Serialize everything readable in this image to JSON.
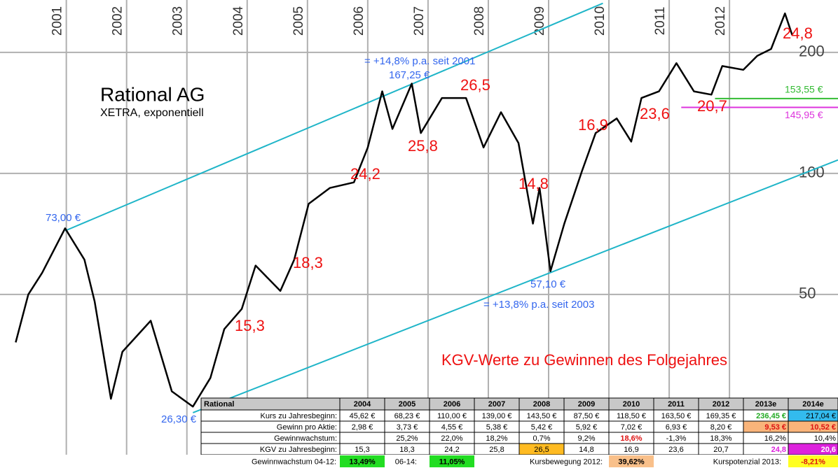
{
  "chart_data": {
    "type": "line",
    "title": "Rational AG",
    "subtitle": "XETRA, exponentiell",
    "note": "KGV-Werte zu Gewinnen des Folgejahres",
    "log_scale": true,
    "grid": true,
    "xlim": [
      1999.9,
      2013.8
    ],
    "xticks": [
      2001,
      2002,
      2003,
      2004,
      2005,
      2006,
      2007,
      2008,
      2009,
      2010,
      2011,
      2012
    ],
    "ylim": [
      18.5,
      270
    ],
    "yticks": [
      50,
      100,
      200
    ],
    "series": [
      {
        "name": "Rational",
        "color": "#000000",
        "x": [
          2000.16,
          2000.37,
          2000.6,
          2000.98,
          2001.3,
          2001.47,
          2001.74,
          2001.93,
          2002.4,
          2002.75,
          2003.1,
          2003.39,
          2003.62,
          2003.91,
          2004.14,
          2004.55,
          2004.78,
          2005.02,
          2005.37,
          2005.77,
          2006.0,
          2006.24,
          2006.41,
          2006.73,
          2006.88,
          2007.23,
          2007.63,
          2007.92,
          2008.21,
          2008.5,
          2008.74,
          2008.85,
          2009.03,
          2009.26,
          2009.55,
          2009.78,
          2010.13,
          2010.37,
          2010.54,
          2010.83,
          2011.12,
          2011.41,
          2011.7,
          2011.88,
          2012.23,
          2012.46,
          2012.69,
          2012.92,
          2013.04
        ],
        "values": [
          38,
          50,
          56.6,
          73,
          61,
          48,
          27.5,
          36,
          43,
          28.7,
          26.3,
          31,
          41,
          46,
          59,
          51,
          61,
          84,
          92,
          95,
          116,
          160,
          129,
          167.25,
          126,
          154,
          154,
          116,
          142,
          119,
          75,
          92,
          57.1,
          75,
          101,
          126,
          137,
          120,
          154,
          160,
          188,
          160,
          157,
          185,
          181,
          196,
          204,
          250,
          221
        ]
      }
    ],
    "trend_lines": [
      {
        "color": "#1fb5c8",
        "x": [
          2000.98,
          2009.9
        ],
        "values": [
          72,
          265
        ]
      },
      {
        "color": "#1fb5c8",
        "x": [
          2003.1,
          2013.8
        ],
        "values": [
          25.4,
          108
        ]
      }
    ],
    "hlines": [
      {
        "value": 153.55,
        "label": "153,55 €",
        "color": "#33bb33",
        "x_start": 2011.76
      },
      {
        "value": 145.95,
        "label": "145,95 €",
        "color": "#dd33dd",
        "x_start": 2011.2
      }
    ],
    "annotations": [
      {
        "text": "73,00 €",
        "color": "#3366ee"
      },
      {
        "text": "26,30 €",
        "color": "#3366ee"
      },
      {
        "text": "167,25 €",
        "color": "#3366ee"
      },
      {
        "text": "57,10 €",
        "color": "#3366ee"
      },
      {
        "text": "= +14,8% p.a. seit 2001",
        "color": "#3366ee"
      },
      {
        "text": "= +13,8% p.a. seit 2003",
        "color": "#3366ee"
      },
      {
        "text": "15,3",
        "color": "#ee1111"
      },
      {
        "text": "18,3",
        "color": "#ee1111"
      },
      {
        "text": "24,2",
        "color": "#ee1111"
      },
      {
        "text": "25,8",
        "color": "#ee1111"
      },
      {
        "text": "26,5",
        "color": "#ee1111"
      },
      {
        "text": "14,8",
        "color": "#ee1111"
      },
      {
        "text": "16,9",
        "color": "#ee1111"
      },
      {
        "text": "23,6",
        "color": "#ee1111"
      },
      {
        "text": "20,7",
        "color": "#ee1111"
      },
      {
        "text": "24,8",
        "color": "#ee1111"
      }
    ],
    "table": {
      "header": [
        "Rational",
        "2004",
        "2005",
        "2006",
        "2007",
        "2008",
        "2009",
        "2010",
        "2011",
        "2012",
        "2013e",
        "2014e"
      ],
      "rows": [
        [
          "Kurs zu Jahresbeginn:",
          "45,62 €",
          "68,23 €",
          "110,00 €",
          "139,00 €",
          "143,50 €",
          "87,50 €",
          "118,50 €",
          "163,50 €",
          "169,35 €",
          "236,45 €",
          "217,04 €"
        ],
        [
          "Gewinn pro Aktie:",
          "2,98 €",
          "3,73 €",
          "4,55 €",
          "5,38 €",
          "5,42 €",
          "5,92 €",
          "7,02 €",
          "6,93 €",
          "8,20 €",
          "9,53 €",
          "10,52 €"
        ],
        [
          "Gewinnwachstum:",
          null,
          "25,2%",
          "22,0%",
          "18,2%",
          "0,7%",
          "9,2%",
          "18,6%",
          "-1,3%",
          "18,3%",
          "16,2%",
          "10,4%"
        ],
        [
          "KGV zu Jahresbeginn:",
          "15,3",
          "18,3",
          "24,2",
          "25,8",
          "26,5",
          "14,8",
          "16,9",
          "23,6",
          "20,7",
          "24,8",
          "20,6"
        ]
      ],
      "footer": [
        "Gewinnwachstum 04-12:",
        "13,49%",
        "06-14:",
        "11,05%",
        "Kursbewegung 2012:",
        "39,62%",
        "Kurspotenzial 2013:",
        "-8,21%"
      ]
    }
  }
}
